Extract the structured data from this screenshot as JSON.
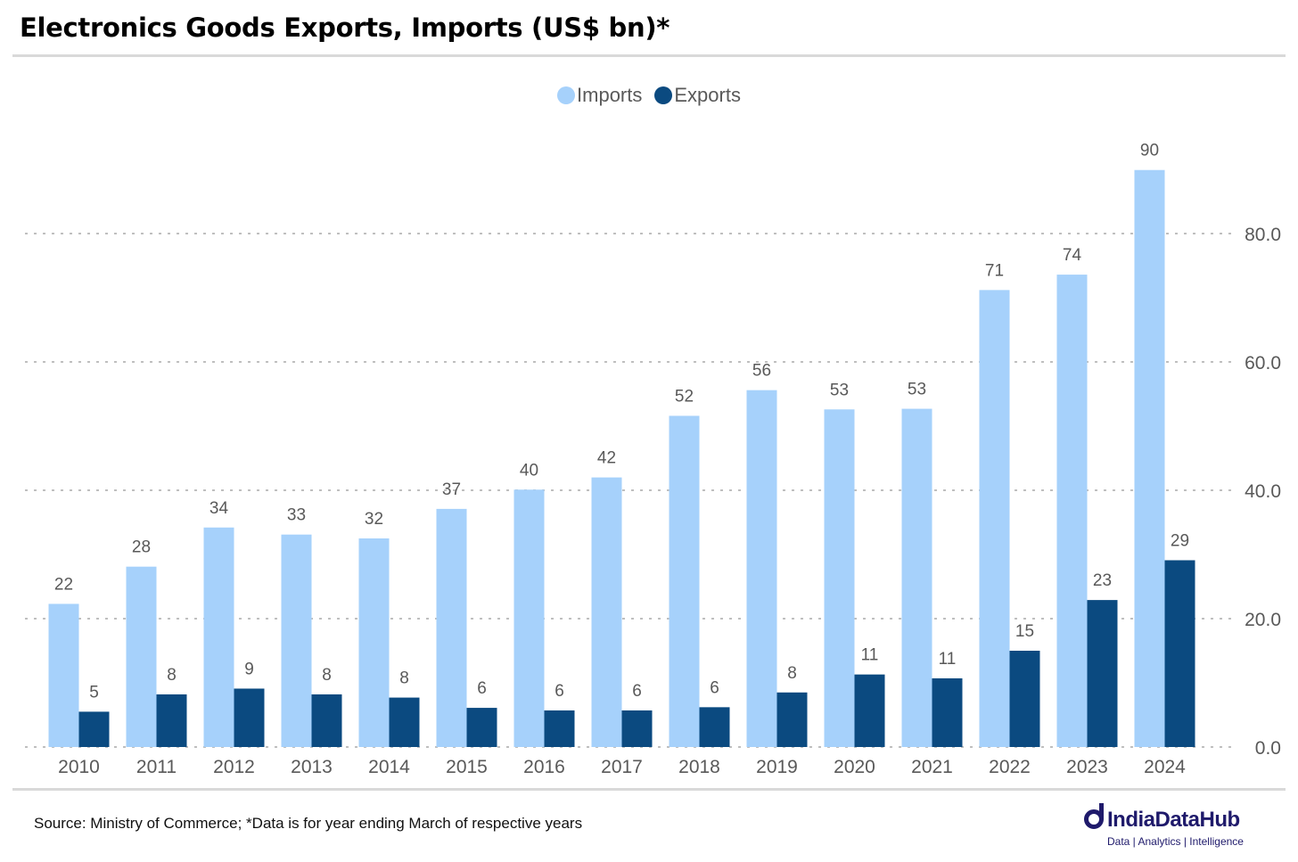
{
  "title": "Electronics Goods Exports, Imports (US$ bn)*",
  "source": "Source: Ministry of Commerce; *Data is for year ending March of respective years",
  "brand": {
    "name": "IndiaDataHub",
    "tagline": "Data | Analytics | Intelligence"
  },
  "colors": {
    "imports": "#a6d1fb",
    "exports": "#0b4a80",
    "grid": "#bfbfbf",
    "text": "#595959"
  },
  "chart_data": {
    "type": "bar",
    "categories": [
      "2010",
      "2011",
      "2012",
      "2013",
      "2014",
      "2015",
      "2016",
      "2017",
      "2018",
      "2019",
      "2020",
      "2021",
      "2022",
      "2023",
      "2024"
    ],
    "series": [
      {
        "name": "Imports",
        "values": [
          22.3,
          28.1,
          34.2,
          33.1,
          32.5,
          37.1,
          40.1,
          42.0,
          51.6,
          55.6,
          52.6,
          52.7,
          71.2,
          73.6,
          89.9
        ],
        "labels": [
          "22",
          "28",
          "34",
          "33",
          "32",
          "37",
          "40",
          "42",
          "52",
          "56",
          "53",
          "53",
          "71",
          "74",
          "90"
        ]
      },
      {
        "name": "Exports",
        "values": [
          5.5,
          8.2,
          9.1,
          8.2,
          7.7,
          6.1,
          5.7,
          5.7,
          6.2,
          8.5,
          11.3,
          10.7,
          15.0,
          22.9,
          29.1
        ],
        "labels": [
          "5",
          "8",
          "9",
          "8",
          "8",
          "6",
          "6",
          "6",
          "6",
          "8",
          "11",
          "11",
          "15",
          "23",
          "29"
        ]
      }
    ],
    "y_axis": {
      "position": "right",
      "ticks": [
        "0.0",
        "20.0",
        "40.0",
        "60.0",
        "80.0"
      ],
      "tick_values": [
        0,
        20,
        40,
        60,
        80
      ]
    },
    "ylim": [
      0,
      100
    ],
    "grid": true,
    "legend": "top-center"
  }
}
